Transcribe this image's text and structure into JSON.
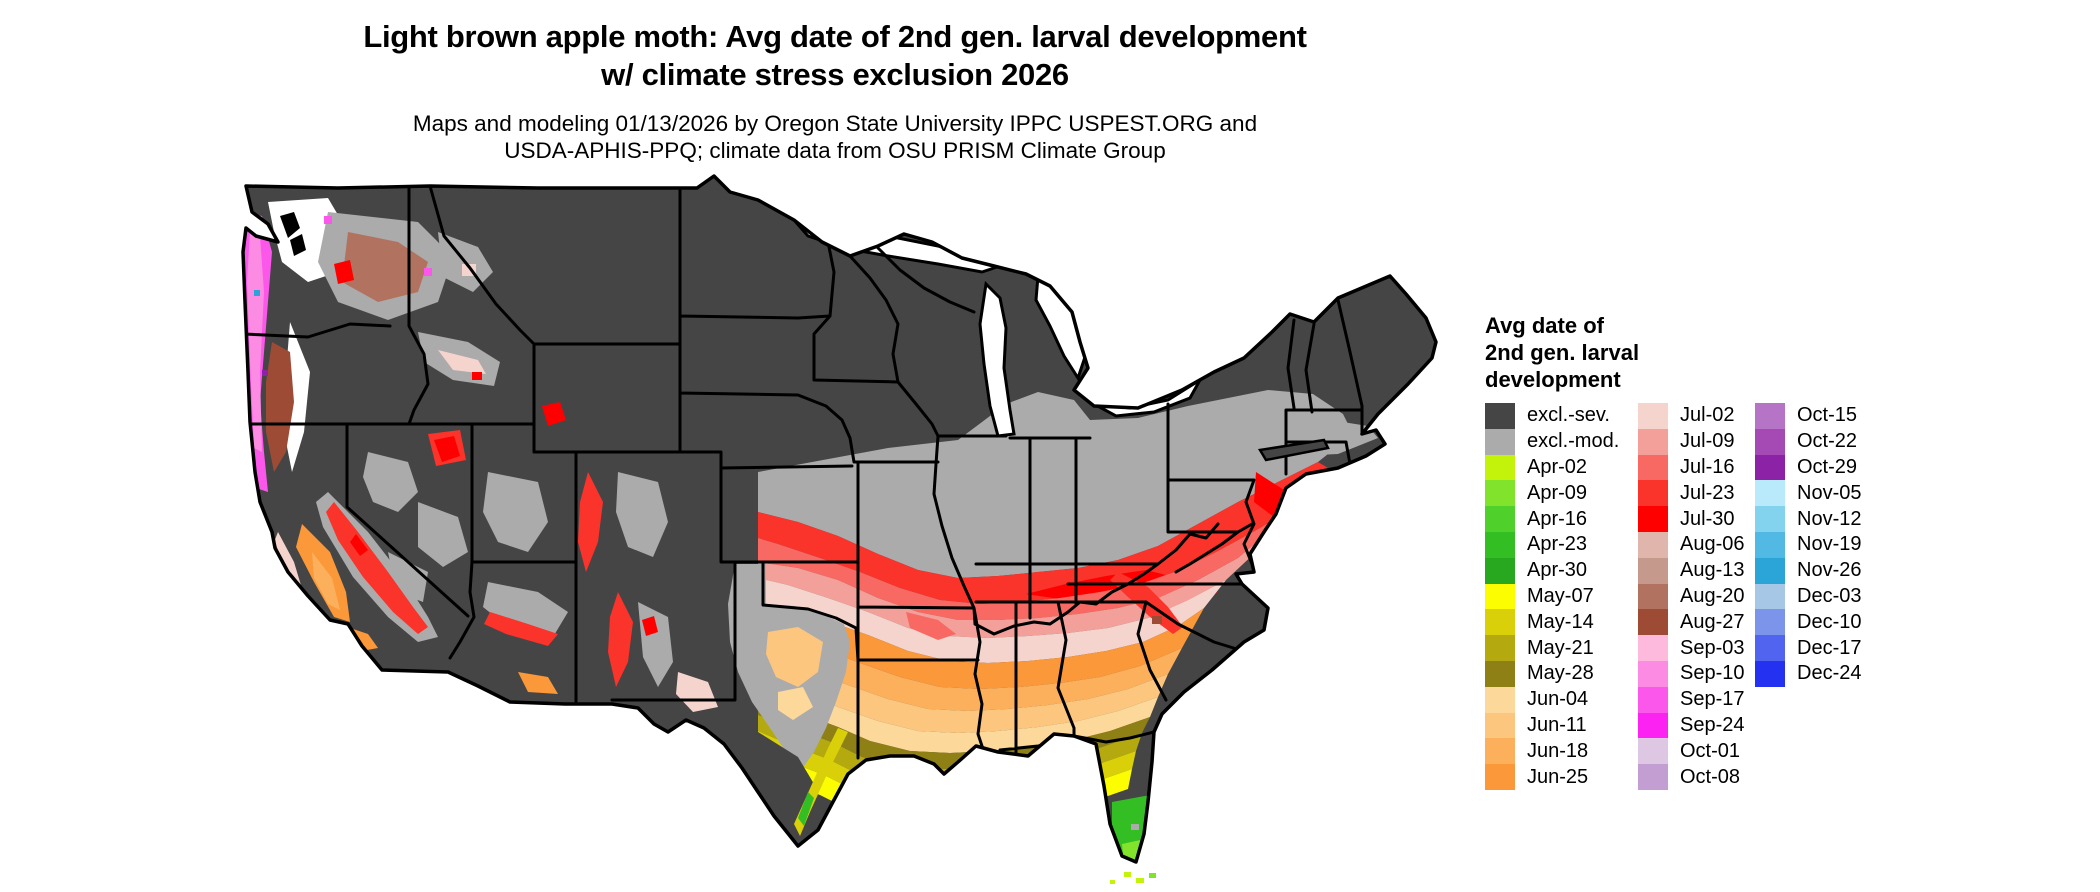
{
  "header": {
    "title_line1": "Light brown apple moth: Avg date of 2nd gen. larval development",
    "title_line2": "w/ climate stress exclusion 2026",
    "subtitle_line1": "Maps and modeling 01/13/2026 by Oregon State University IPPC USPEST.ORG and",
    "subtitle_line2": "USDA-APHIS-PPQ; climate data from OSU PRISM Climate Group"
  },
  "legend": {
    "title_line1": "Avg date of",
    "title_line2": "2nd gen. larval",
    "title_line3": "development",
    "columns": [
      {
        "entries": [
          {
            "label": "excl.-sev.",
            "color": "#454545"
          },
          {
            "label": "excl.-mod.",
            "color": "#ababab"
          },
          {
            "label": "Apr-02",
            "color": "#c3f20b"
          },
          {
            "label": "Apr-09",
            "color": "#82e32d"
          },
          {
            "label": "Apr-16",
            "color": "#4fd02b"
          },
          {
            "label": "Apr-23",
            "color": "#33bf24"
          },
          {
            "label": "Apr-30",
            "color": "#28a81e"
          },
          {
            "label": "May-07",
            "color": "#fdfd01"
          },
          {
            "label": "May-14",
            "color": "#d9d009"
          },
          {
            "label": "May-21",
            "color": "#b4a90e"
          },
          {
            "label": "May-28",
            "color": "#8e8014"
          },
          {
            "label": "Jun-04",
            "color": "#fdd89b"
          },
          {
            "label": "Jun-11",
            "color": "#fdc67e"
          },
          {
            "label": "Jun-18",
            "color": "#fdb05c"
          },
          {
            "label": "Jun-25",
            "color": "#fb983a"
          }
        ]
      },
      {
        "entries": [
          {
            "label": "Jul-02",
            "color": "#f5d4ce"
          },
          {
            "label": "Jul-09",
            "color": "#f3a09a"
          },
          {
            "label": "Jul-16",
            "color": "#f76962"
          },
          {
            "label": "Jul-23",
            "color": "#fa332b"
          },
          {
            "label": "Jul-30",
            "color": "#ff0000"
          },
          {
            "label": "Aug-06",
            "color": "#e0b6ac"
          },
          {
            "label": "Aug-13",
            "color": "#c5998c"
          },
          {
            "label": "Aug-20",
            "color": "#b17260"
          },
          {
            "label": "Aug-27",
            "color": "#9d4b34"
          },
          {
            "label": "Sep-03",
            "color": "#fdbadd"
          },
          {
            "label": "Sep-10",
            "color": "#fc8be3"
          },
          {
            "label": "Sep-17",
            "color": "#fc57eb"
          },
          {
            "label": "Sep-24",
            "color": "#fc22f2"
          },
          {
            "label": "Oct-01",
            "color": "#ddc7e3"
          },
          {
            "label": "Oct-08",
            "color": "#c29ed3"
          }
        ]
      },
      {
        "entries": [
          {
            "label": "Oct-15",
            "color": "#b674c7"
          },
          {
            "label": "Oct-22",
            "color": "#a54ab5"
          },
          {
            "label": "Oct-29",
            "color": "#8c22a6"
          },
          {
            "label": "Nov-05",
            "color": "#b8eafc"
          },
          {
            "label": "Nov-12",
            "color": "#83d3ef"
          },
          {
            "label": "Nov-19",
            "color": "#51b9e3"
          },
          {
            "label": "Nov-26",
            "color": "#2ba4d7"
          },
          {
            "label": "Dec-03",
            "color": "#a6c7e5"
          },
          {
            "label": "Dec-10",
            "color": "#7c95ea"
          },
          {
            "label": "Dec-17",
            "color": "#5064ef"
          },
          {
            "label": "Dec-24",
            "color": "#2531f1"
          }
        ]
      }
    ]
  },
  "map": {
    "base_color": "#454545",
    "excluded_moderate_color": "#ababab",
    "border_color": "#000000",
    "background": "#ffffff"
  }
}
